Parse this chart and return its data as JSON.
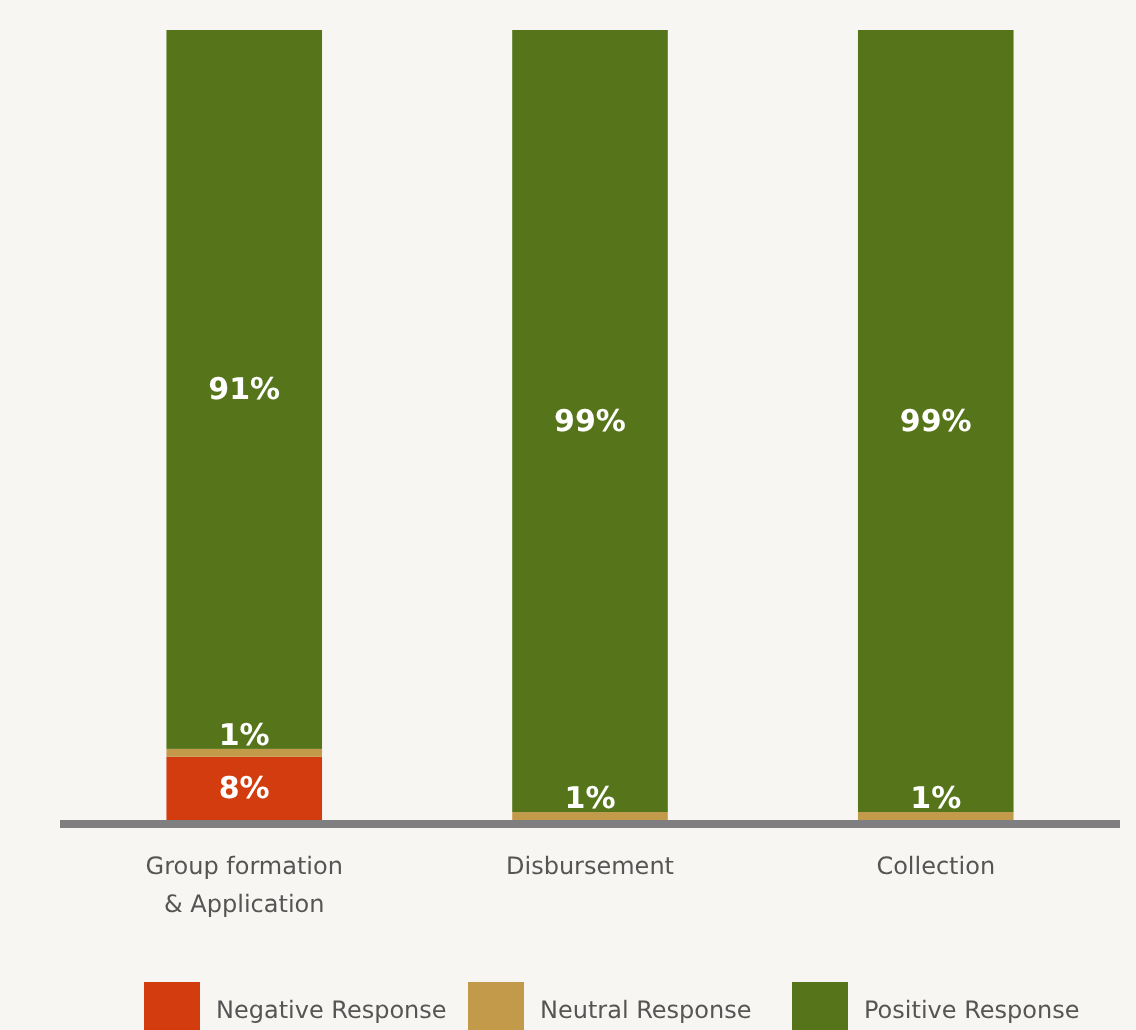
{
  "chart_data": {
    "type": "bar",
    "stacked": true,
    "categories": [
      "Group formation\n& Application",
      "Disbursement",
      "Collection"
    ],
    "series": [
      {
        "name": "Negative Response",
        "color": "#d23c0e",
        "values": [
          8,
          0,
          0
        ],
        "value_labels": [
          "8%",
          null,
          null
        ]
      },
      {
        "name": "Neutral Response",
        "color": "#c29a4a",
        "values": [
          1,
          1,
          1
        ],
        "value_labels": [
          "1%",
          "1%",
          "1%"
        ]
      },
      {
        "name": "Positive Response",
        "color": "#56741a",
        "values": [
          91,
          99,
          99
        ],
        "value_labels": [
          "91%",
          "99%",
          "99%"
        ]
      }
    ],
    "legend": "bottom"
  }
}
